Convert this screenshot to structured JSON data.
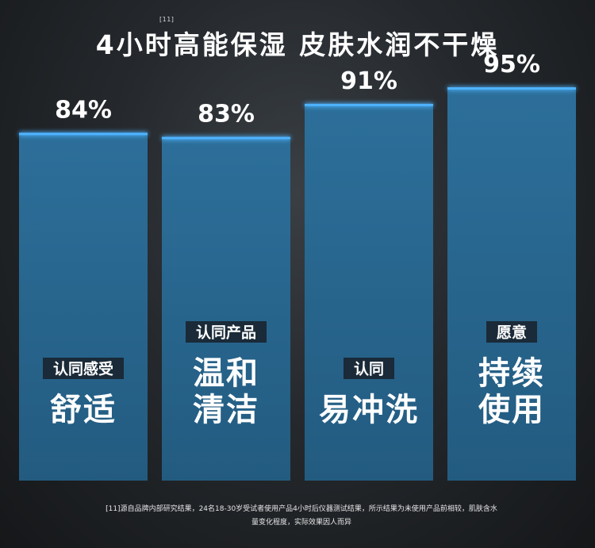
{
  "title": "4小时高能保湿 皮肤水润不干燥",
  "title_footnote_mark": "[11]",
  "colors": {
    "bar_fill": "#2c6f9a",
    "bar_fill_dark": "#235b80",
    "bar_top_glow": "#4fb3ff",
    "tag_bg": "#1a2a38",
    "text": "#ffffff"
  },
  "chart_data": {
    "type": "bar",
    "categories": [
      "舒适",
      "温和清洁",
      "易冲洗",
      "持续使用"
    ],
    "values": [
      84,
      83,
      91,
      95
    ],
    "unit": "%",
    "value_labels": [
      "84%",
      "83%",
      "91%",
      "95%"
    ],
    "bars": [
      {
        "tag": "认同感受",
        "lines": [
          "舒适"
        ]
      },
      {
        "tag": "认同产品",
        "lines": [
          "温和",
          "清洁"
        ]
      },
      {
        "tag": "认同",
        "lines": [
          "易冲洗"
        ]
      },
      {
        "tag": "愿意",
        "lines": [
          "持续",
          "使用"
        ]
      }
    ],
    "ylim": [
      0,
      100
    ],
    "grid": false
  },
  "footnote": {
    "line1": "[11]源自品牌内部研究结果，24名18-30岁受试者使用产品4小时后仪器测试结果，所示结果为未使用产品前相较，肌肤含水",
    "line2": "量变化程度，实际效果因人而异"
  }
}
